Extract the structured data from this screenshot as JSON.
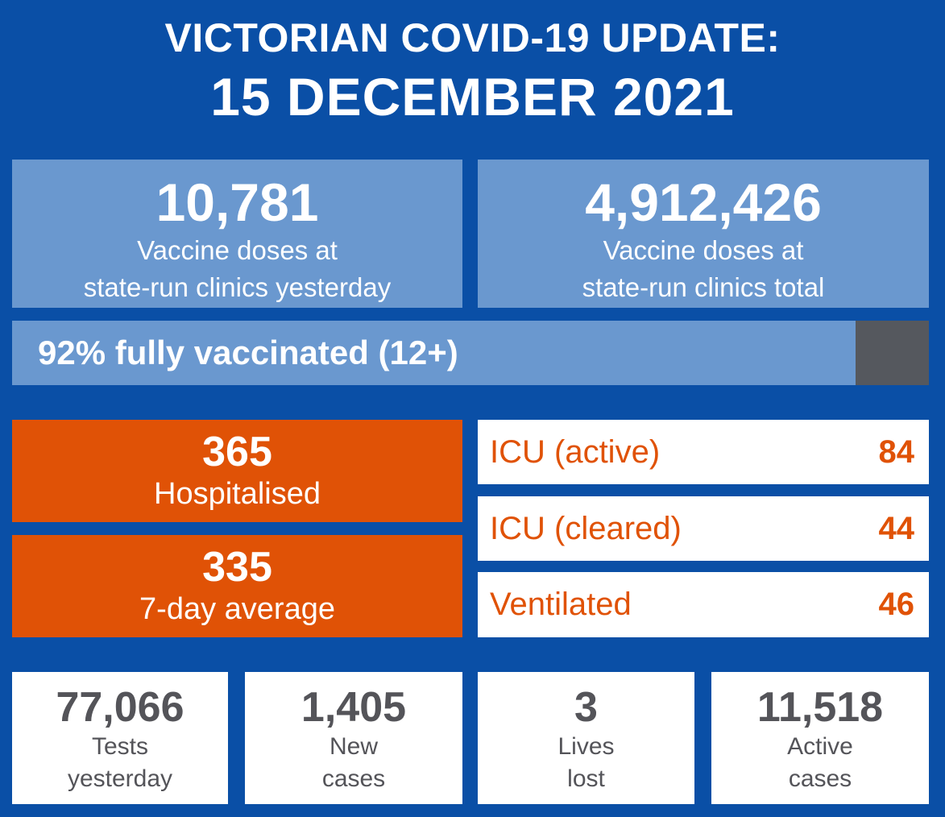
{
  "header": {
    "title": "VICTORIAN COVID-19 UPDATE:",
    "date": "15 DECEMBER 2021"
  },
  "vaccine_doses": [
    {
      "value": "10,781",
      "label_line1": "Vaccine doses at",
      "label_line2": "state-run clinics yesterday"
    },
    {
      "value": "4,912,426",
      "label_line1": "Vaccine doses at",
      "label_line2": "state-run clinics total"
    }
  ],
  "fully_vaccinated": {
    "text": "92% fully vaccinated (12+)",
    "percent": 92
  },
  "hospital": {
    "hospitalised": {
      "value": "365",
      "label": "Hospitalised"
    },
    "seven_day_average": {
      "value": "335",
      "label": "7-day average"
    }
  },
  "icu_rows": [
    {
      "label": "ICU (active)",
      "value": "84"
    },
    {
      "label": "ICU (cleared)",
      "value": "44"
    },
    {
      "label": "Ventilated",
      "value": "46"
    }
  ],
  "stats": [
    {
      "value": "77,066",
      "line1": "Tests",
      "line2": "yesterday"
    },
    {
      "value": "1,405",
      "line1": "New",
      "line2": "cases"
    },
    {
      "value": "3",
      "line1": "Lives",
      "line2": "lost"
    },
    {
      "value": "11,518",
      "line1": "Active",
      "line2": "cases"
    }
  ],
  "colors": {
    "background": "#0a4fa6",
    "light_blue": "#6a98cf",
    "orange": "#e05206",
    "grey": "#55585e",
    "stat_text": "#545459"
  }
}
